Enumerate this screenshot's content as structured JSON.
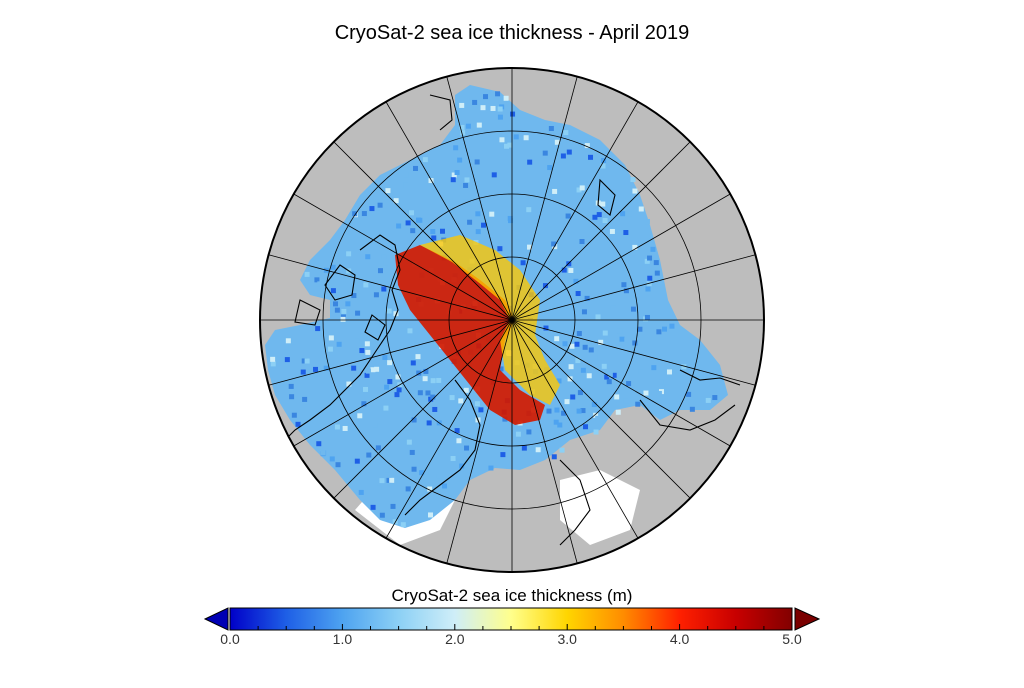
{
  "title": "CryoSat-2 sea ice thickness - April 2019",
  "map": {
    "projection": "north-polar-stereographic",
    "land_color": "#bdbdbd",
    "ocean_color": "#ffffff",
    "coastline_color": "#000000",
    "meridian_count": 24,
    "parallel_count": 3
  },
  "colorbar": {
    "label": "CryoSat-2 sea ice thickness (m)",
    "min": 0.0,
    "max": 5.0,
    "ticks": [
      "0.0",
      "1.0",
      "2.0",
      "3.0",
      "4.0",
      "5.0"
    ],
    "extend": "both",
    "under_color": "#0000b4",
    "over_color": "#7a0000",
    "stops": [
      {
        "value": 0.0,
        "color": "#0000c8"
      },
      {
        "value": 0.5,
        "color": "#1e5fe6"
      },
      {
        "value": 1.0,
        "color": "#4ea3f0"
      },
      {
        "value": 1.5,
        "color": "#8cd0f5"
      },
      {
        "value": 2.0,
        "color": "#cfeef8"
      },
      {
        "value": 2.5,
        "color": "#ffff8c"
      },
      {
        "value": 3.0,
        "color": "#ffd500"
      },
      {
        "value": 3.5,
        "color": "#ff8c00"
      },
      {
        "value": 4.0,
        "color": "#ff2000"
      },
      {
        "value": 4.5,
        "color": "#c80000"
      },
      {
        "value": 5.0,
        "color": "#820000"
      }
    ]
  }
}
